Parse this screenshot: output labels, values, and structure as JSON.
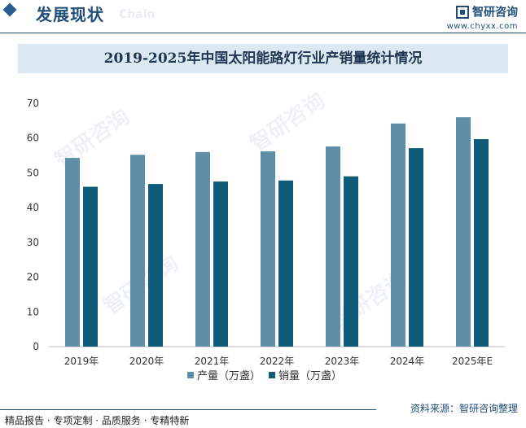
{
  "header": {
    "title": "发展现状",
    "subtitle": "Chain",
    "brand_name": "智研咨询",
    "brand_url": "www.chyxx.com"
  },
  "footer": {
    "left": "精品报告 · 专项定制 · 品质服务 · 专精特新",
    "source": "资料来源：智研咨询整理"
  },
  "colors": {
    "series1": "#5f8fa8",
    "series2": "#0f5c7a",
    "accent": "#1f4e79"
  },
  "chart_data": {
    "type": "bar",
    "title": "2019-2025年中国太阳能路灯行业产销量统计情况",
    "categories": [
      "2019年",
      "2020年",
      "2021年",
      "2022年",
      "2023年",
      "2024年",
      "2025年E"
    ],
    "series": [
      {
        "name": "产量（万盏）",
        "values": [
          54.3,
          55.2,
          56.0,
          56.2,
          57.6,
          64.2,
          66.0
        ]
      },
      {
        "name": "销量（万盏）",
        "values": [
          46.0,
          46.8,
          47.5,
          47.8,
          49.0,
          57.1,
          59.7
        ]
      }
    ],
    "ylim": [
      0,
      70
    ],
    "yticks": [
      0,
      10,
      20,
      30,
      40,
      50,
      60,
      70
    ],
    "xlabel": "",
    "ylabel": "",
    "legend": "bottom-center",
    "grid": false
  }
}
